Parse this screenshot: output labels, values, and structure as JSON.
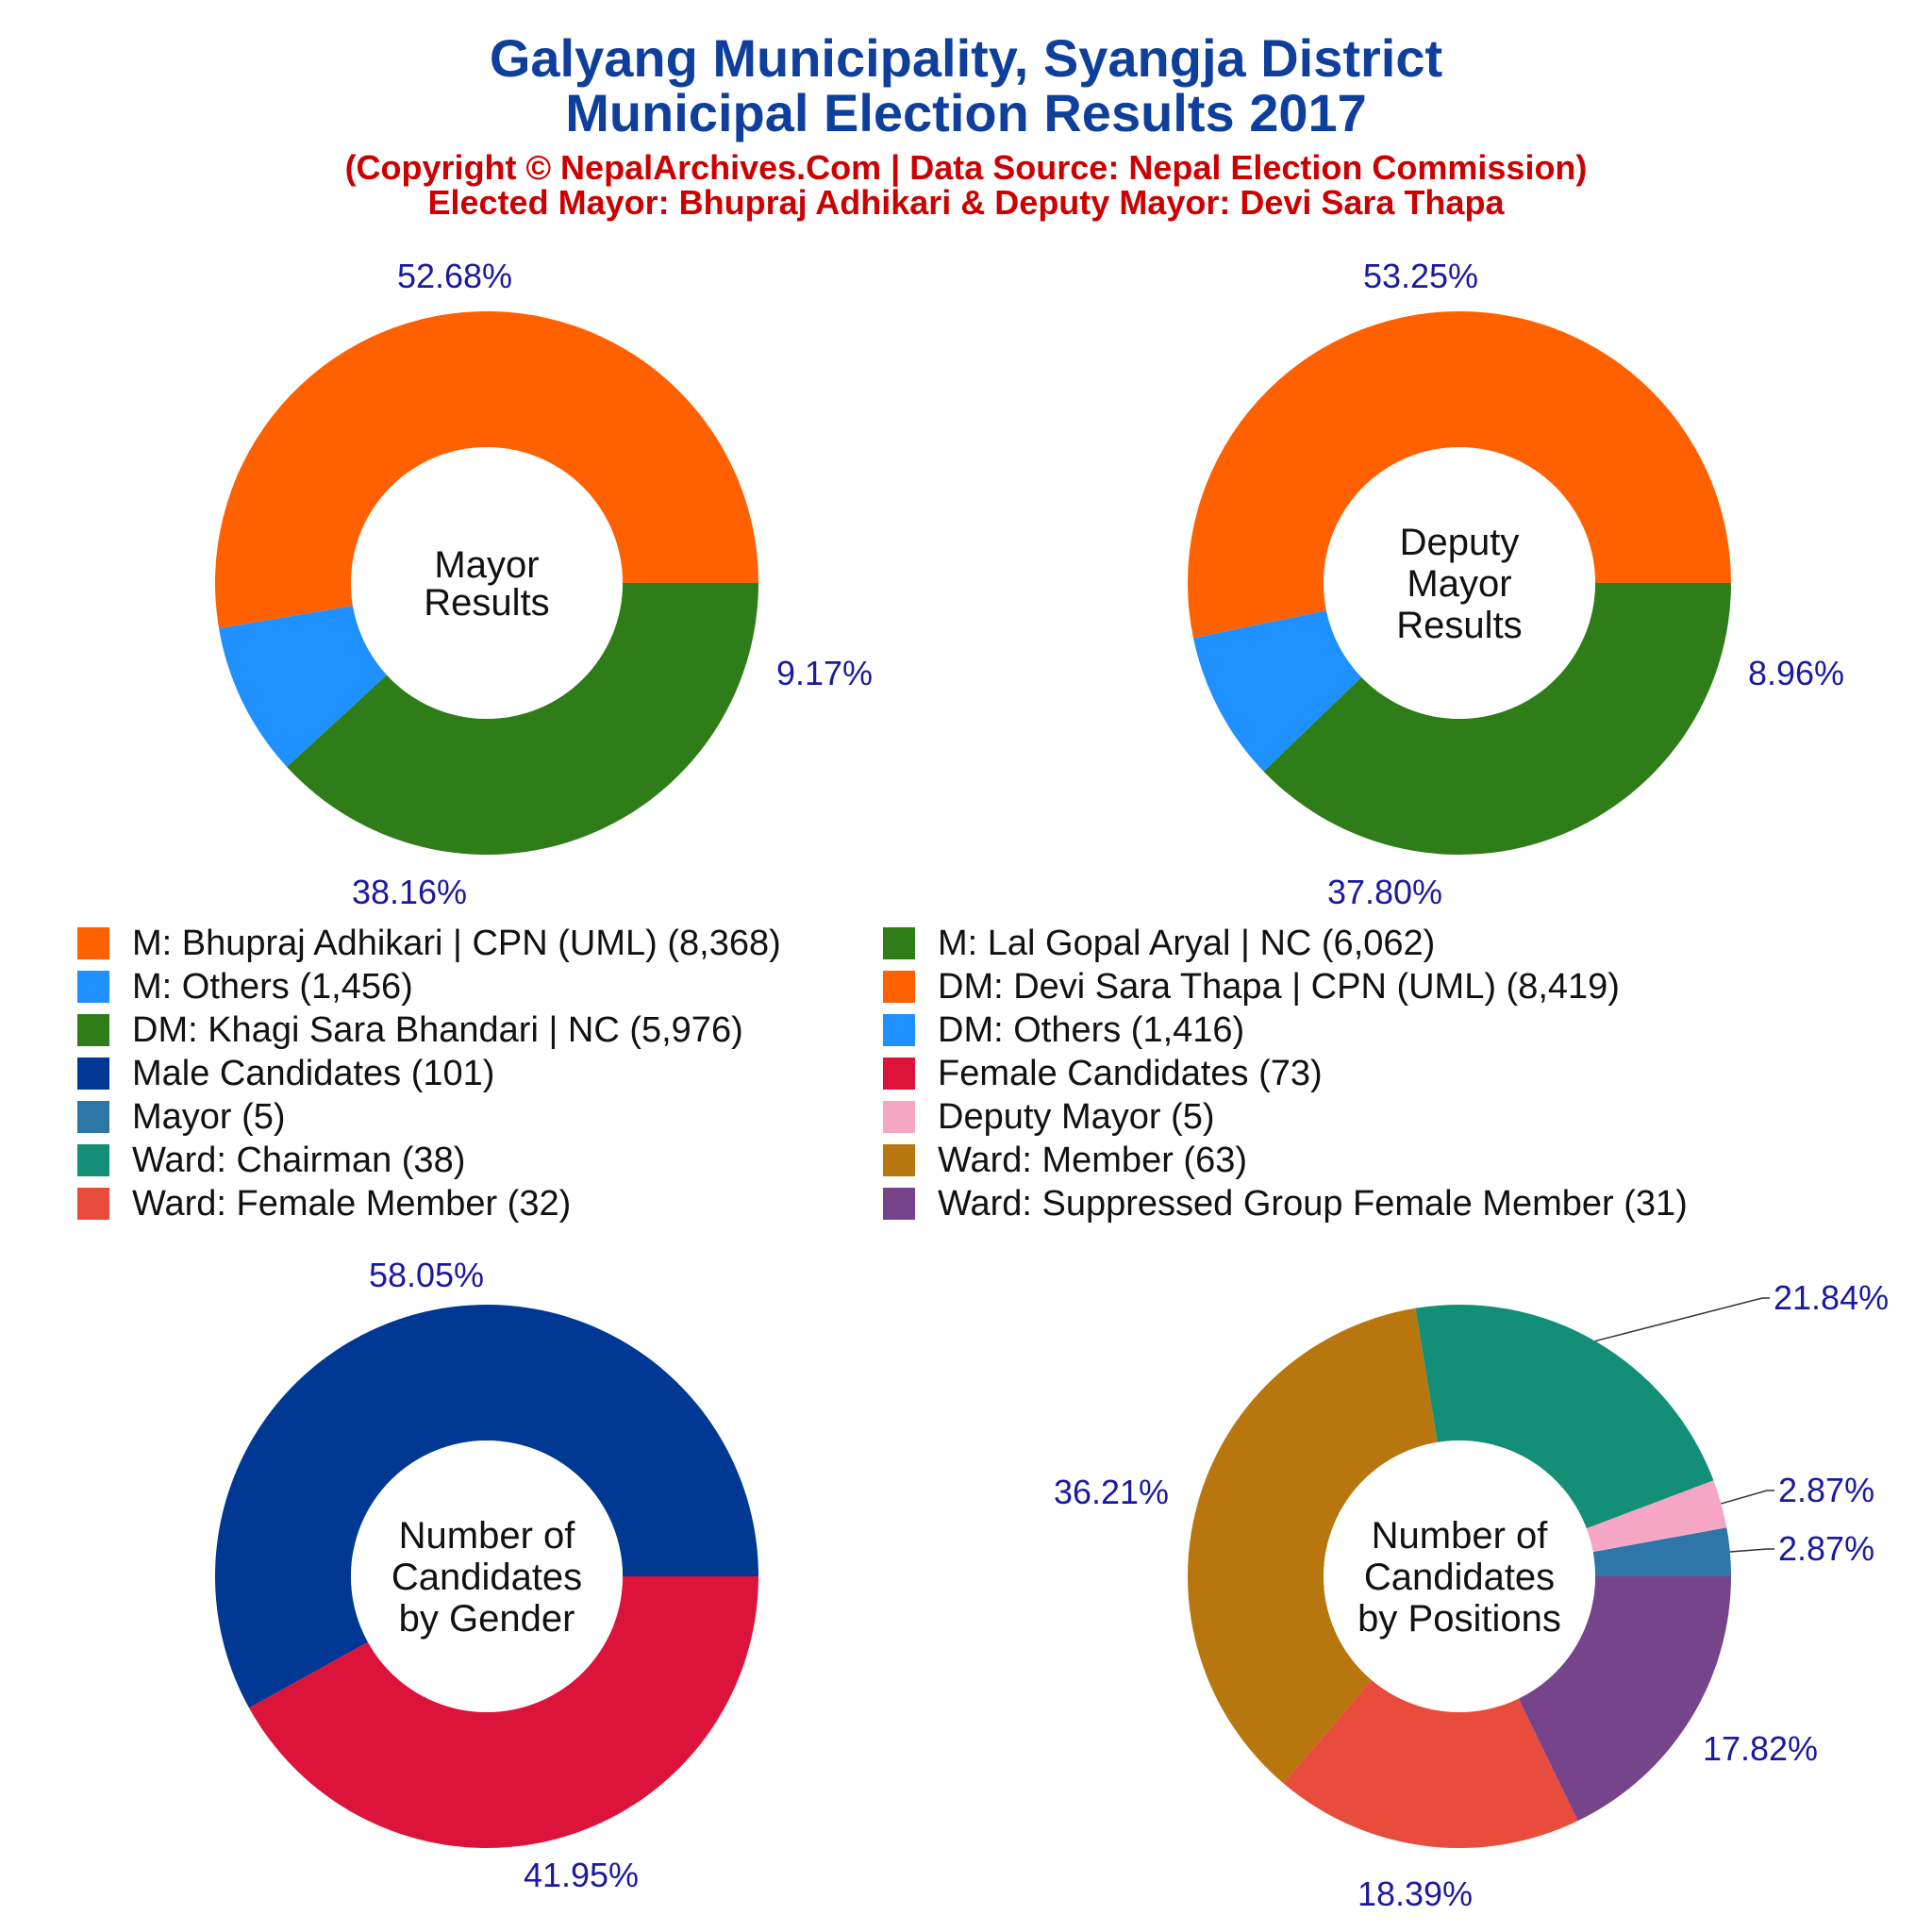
{
  "title_line1": "Galyang Municipality, Syangja District",
  "title_line2": "Municipal Election Results 2017",
  "subtitle_line1": "(Copyright © NepalArchives.Com | Data Source: Nepal Election Commission)",
  "subtitle_line2": "Elected Mayor: Bhupraj Adhikari & Deputy Mayor: Devi Sara Thapa",
  "legend": [
    {
      "label": "M: Bhupraj Adhikari | CPN (UML) (8,368)",
      "color": "#ff6000"
    },
    {
      "label": "M: Lal Gopal Aryal | NC (6,062)",
      "color": "#2e7d18"
    },
    {
      "label": "M: Others (1,456)",
      "color": "#1e90ff"
    },
    {
      "label": "DM: Devi Sara Thapa | CPN (UML) (8,419)",
      "color": "#ff6000"
    },
    {
      "label": "DM: Khagi Sara  Bhandari | NC (5,976)",
      "color": "#2e7d18"
    },
    {
      "label": "DM: Others (1,416)",
      "color": "#1e90ff"
    },
    {
      "label": "Male Candidates (101)",
      "color": "#003893"
    },
    {
      "label": "Female Candidates (73)",
      "color": "#dc143c"
    },
    {
      "label": "Mayor (5)",
      "color": "#2e75a8"
    },
    {
      "label": "Deputy Mayor (5)",
      "color": "#f4a6c4"
    },
    {
      "label": "Ward: Chairman (38)",
      "color": "#138f78"
    },
    {
      "label": "Ward: Member (63)",
      "color": "#b8770e"
    },
    {
      "label": "Ward: Female Member (32)",
      "color": "#e74c3c"
    },
    {
      "label": "Ward: Suppressed Group Female Member (31)",
      "color": "#76448a"
    }
  ],
  "chart_data": [
    {
      "type": "pie",
      "donut": true,
      "title": "Mayor Results",
      "center_lines": [
        "Mayor",
        "Results"
      ],
      "categories": [
        "M: Bhupraj Adhikari | CPN (UML)",
        "M: Others",
        "M: Lal Gopal Aryal | NC"
      ],
      "values": [
        8368,
        1456,
        6062
      ],
      "percent_labels": [
        "52.68%",
        "9.17%",
        "38.16%"
      ],
      "colors": [
        "#ff6000",
        "#1e90ff",
        "#2e7d18"
      ]
    },
    {
      "type": "pie",
      "donut": true,
      "title": "Deputy Mayor Results",
      "center_lines": [
        "Deputy",
        "Mayor",
        "Results"
      ],
      "categories": [
        "DM: Devi Sara Thapa | CPN (UML)",
        "DM: Others",
        "DM: Khagi Sara  Bhandari | NC"
      ],
      "values": [
        8419,
        1416,
        5976
      ],
      "percent_labels": [
        "53.25%",
        "8.96%",
        "37.80%"
      ],
      "colors": [
        "#ff6000",
        "#1e90ff",
        "#2e7d18"
      ]
    },
    {
      "type": "pie",
      "donut": true,
      "title": "Number of Candidates by Gender",
      "center_lines": [
        "Number of",
        "Candidates",
        "by Gender"
      ],
      "categories": [
        "Male Candidates",
        "Female Candidates"
      ],
      "values": [
        101,
        73
      ],
      "percent_labels": [
        "58.05%",
        "41.95%"
      ],
      "colors": [
        "#003893",
        "#dc143c"
      ]
    },
    {
      "type": "pie",
      "donut": true,
      "title": "Number of Candidates by Positions",
      "center_lines": [
        "Number of",
        "Candidates",
        "by Positions"
      ],
      "categories": [
        "Mayor",
        "Deputy Mayor",
        "Ward: Chairman",
        "Ward: Member",
        "Ward: Female Member",
        "Ward: Suppressed Group Female Member"
      ],
      "values": [
        5,
        5,
        38,
        63,
        32,
        31
      ],
      "percent_labels": [
        "2.87%",
        "2.87%",
        "21.84%",
        "36.21%",
        "18.39%",
        "17.82%"
      ],
      "colors": [
        "#2e75a8",
        "#f4a6c4",
        "#138f78",
        "#b8770e",
        "#e74c3c",
        "#76448a"
      ]
    }
  ]
}
